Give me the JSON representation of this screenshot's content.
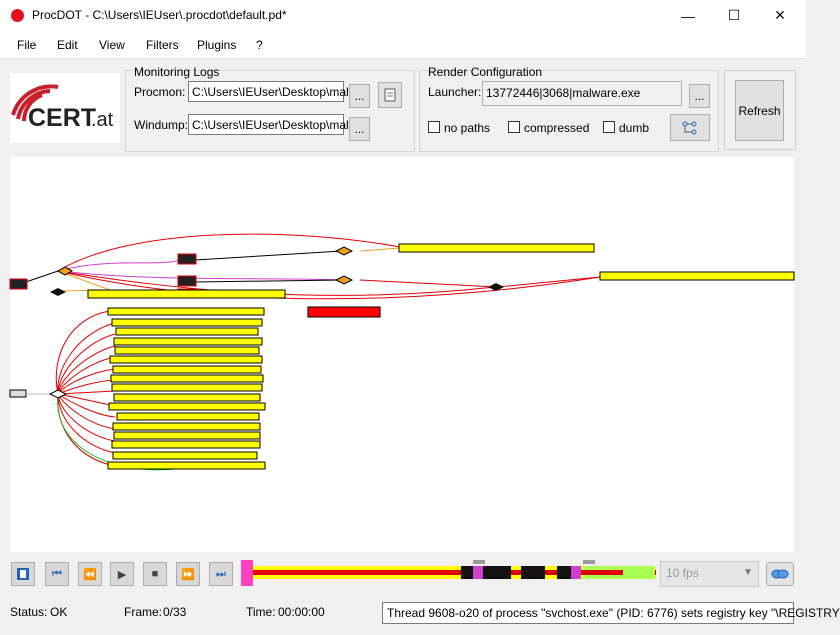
{
  "window": {
    "title": "ProcDOT - C:\\Users\\IEUser\\.procdot\\default.pd*",
    "controls": [
      "—",
      "☐",
      "✕"
    ]
  },
  "menu": [
    "File",
    "Edit",
    "View",
    "Filters",
    "Plugins",
    "?"
  ],
  "logo": {
    "brand": "CERT.at",
    "color": "#c8202e"
  },
  "monitoring": {
    "title": "Monitoring Logs",
    "procmon_label": "Procmon:",
    "procmon_value": "C:\\Users\\IEUser\\Desktop\\malw",
    "windump_label": "Windump:",
    "windump_value": "C:\\Users\\IEUser\\Desktop\\malw",
    "browse_label": "..."
  },
  "render": {
    "title": "Render Configuration",
    "launcher_label": "Launcher:",
    "launcher_value": "13772446|3068|malware.exe",
    "browse_label": "...",
    "options": [
      {
        "label": "no paths",
        "checked": false
      },
      {
        "label": "compressed",
        "checked": false
      },
      {
        "label": "dumb",
        "checked": false
      }
    ]
  },
  "refresh_label": "Refresh",
  "player": {
    "fps_value": "10 fps",
    "icons": [
      "film-icon",
      "skip-first-icon",
      "rewind-icon",
      "play-icon",
      "stop-icon",
      "fast-forward-icon",
      "skip-last-icon"
    ]
  },
  "status": {
    "status_label": "Status:",
    "status_value": "OK",
    "frame_label": "Frame:",
    "frame_value": "0/33",
    "time_label": "Time:",
    "time_value": "00:00:00",
    "message": "Thread 9608-o20 of process \"svchost.exe\" (PID: 6776) sets registry key \"\\REGISTRY"
  },
  "colors": {
    "node_fill": "#ffff00",
    "edge_red": "#e00000",
    "edge_magenta": "#d040d0",
    "edge_orange": "#f0a020",
    "edge_green": "#20c020",
    "alert_node": "#ff0000"
  }
}
